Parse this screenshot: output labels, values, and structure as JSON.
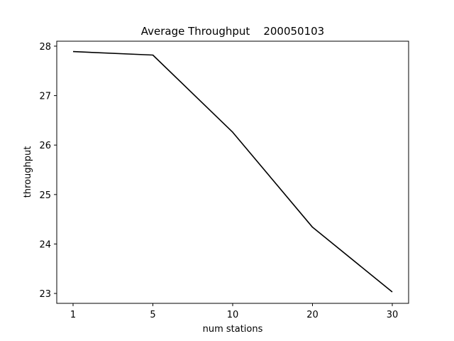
{
  "chart_data": {
    "type": "line",
    "title": "Average Throughput    200050103",
    "xlabel": "num stations",
    "ylabel": "throughput",
    "categories": [
      "1",
      "5",
      "10",
      "20",
      "30"
    ],
    "series": [
      {
        "values": [
          27.89,
          27.82,
          26.26,
          24.34,
          23.03
        ],
        "color": "#000000"
      }
    ],
    "ylim": [
      22.8,
      28.1
    ],
    "yticks": [
      23,
      24,
      25,
      26,
      27,
      28
    ],
    "grid": false,
    "legend": "none"
  }
}
